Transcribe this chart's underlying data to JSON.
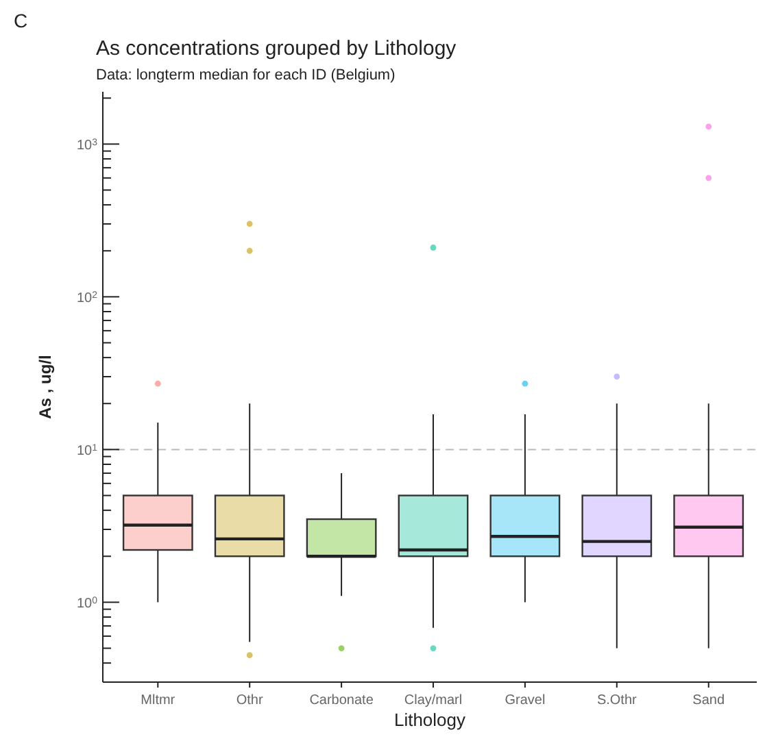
{
  "chart_data": {
    "type": "box",
    "title": "As concentrations grouped by Lithology",
    "subtitle": "Data: longterm median for each ID (Belgium)",
    "xlabel": "Lithology",
    "ylabel": "As , ug/l",
    "annotations": [
      "C"
    ],
    "categories": [
      "Mltmr",
      "Othr",
      "Carbonate",
      "Clay/marl",
      "Gravel",
      "S.Othr",
      "Sand"
    ],
    "colors": [
      "#f8766d",
      "#c49a00",
      "#53b400",
      "#00c094",
      "#00b6eb",
      "#a58aff",
      "#fb61d7"
    ],
    "boxes": [
      {
        "low": 1.0,
        "q1": 2.2,
        "median": 3.2,
        "q3": 5,
        "high": 15,
        "outliers": [
          27
        ]
      },
      {
        "low": 0.55,
        "q1": 2,
        "median": 2.6,
        "q3": 5,
        "high": 20,
        "outliers": [
          300,
          200,
          0.45
        ]
      },
      {
        "low": 1.1,
        "q1": 2,
        "median": 2,
        "q3": 3.5,
        "high": 7,
        "outliers": [
          0.5
        ]
      },
      {
        "low": 0.68,
        "q1": 2,
        "median": 2.2,
        "q3": 5,
        "high": 17,
        "outliers": [
          210,
          0.5
        ]
      },
      {
        "low": 1.0,
        "q1": 2,
        "median": 2.7,
        "q3": 5,
        "high": 17,
        "outliers": [
          27
        ]
      },
      {
        "low": 0.5,
        "q1": 2,
        "median": 2.5,
        "q3": 5,
        "high": 20,
        "outliers": [
          30
        ]
      },
      {
        "low": 0.5,
        "q1": 2,
        "median": 3.1,
        "q3": 5,
        "high": 20,
        "outliers": [
          1300,
          600
        ]
      }
    ],
    "log": true,
    "ylim": [
      0.3,
      2200
    ],
    "yticks": [
      {
        "value": 0.4,
        "label": null
      },
      {
        "value": 0.5,
        "label": null
      },
      {
        "value": 0.6,
        "label": null
      },
      {
        "value": 0.7,
        "label": null
      },
      {
        "value": 0.8,
        "label": null
      },
      {
        "value": 0.9,
        "label": null
      },
      {
        "value": 1,
        "label": "10$^{0}$"
      },
      {
        "value": 2,
        "label": null
      },
      {
        "value": 3,
        "label": null
      },
      {
        "value": 4,
        "label": null
      },
      {
        "value": 5,
        "label": null
      },
      {
        "value": 6,
        "label": null
      },
      {
        "value": 7,
        "label": null
      },
      {
        "value": 8,
        "label": null
      },
      {
        "value": 9,
        "label": null
      },
      {
        "value": 10,
        "label": "10$^{1}$"
      },
      {
        "value": 20,
        "label": null
      },
      {
        "value": 30,
        "label": null
      },
      {
        "value": 40,
        "label": null
      },
      {
        "value": 50,
        "label": null
      },
      {
        "value": 60,
        "label": null
      },
      {
        "value": 70,
        "label": null
      },
      {
        "value": 80,
        "label": null
      },
      {
        "value": 90,
        "label": null
      },
      {
        "value": 100,
        "label": "10$^{2}$"
      },
      {
        "value": 200,
        "label": null
      },
      {
        "value": 300,
        "label": null
      },
      {
        "value": 400,
        "label": null
      },
      {
        "value": 500,
        "label": null
      },
      {
        "value": 600,
        "label": null
      },
      {
        "value": 700,
        "label": null
      },
      {
        "value": 800,
        "label": null
      },
      {
        "value": 900,
        "label": null
      },
      {
        "value": 1000,
        "label": "10$^{3}$"
      },
      {
        "value": 2000,
        "label": null
      }
    ],
    "ref_lines": [
      {
        "axis": "y",
        "value": 10,
        "label": null,
        "color": "#bbbbbb",
        "line_style": "dashed"
      }
    ],
    "grid": false
  }
}
